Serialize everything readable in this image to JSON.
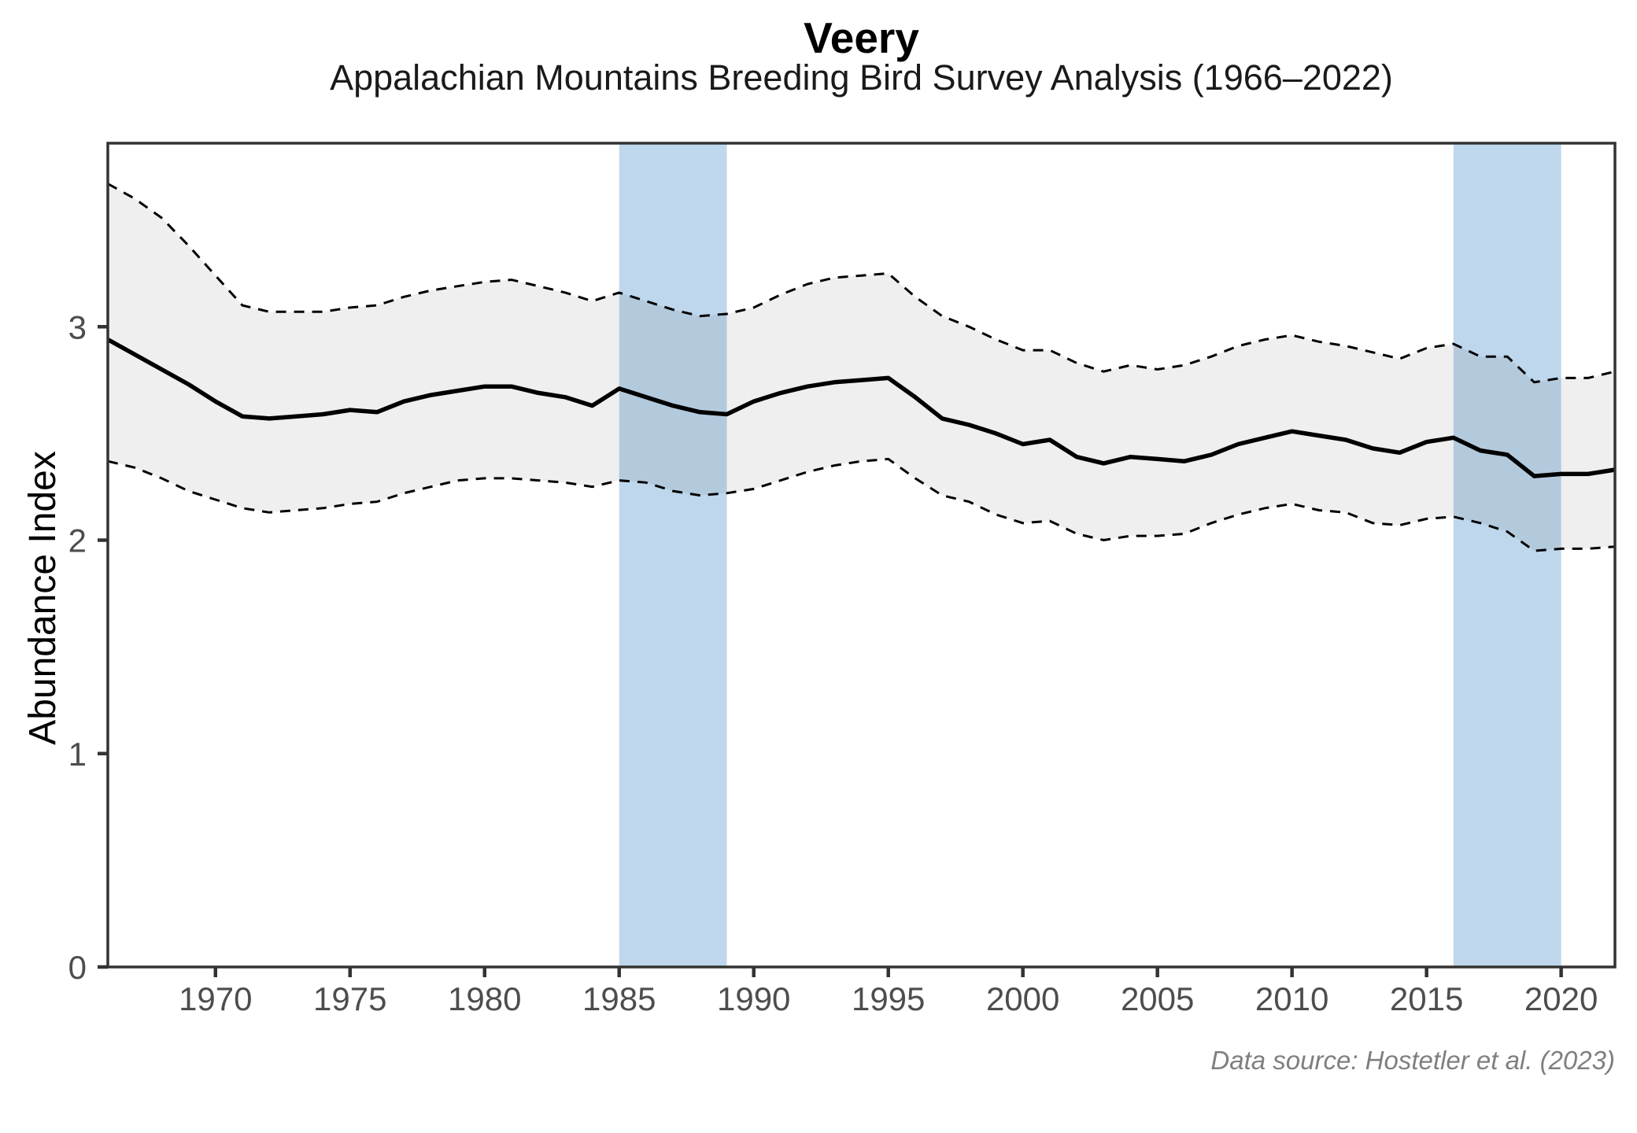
{
  "header": {
    "title": "Veery",
    "subtitle": "Appalachian Mountains Breeding Bird Survey Analysis (1966–2022)"
  },
  "caption": "Data source: Hostetler et al. (2023)",
  "axes": {
    "y_label": "Abundance Index",
    "x_ticks": [
      1970,
      1975,
      1980,
      1985,
      1990,
      1995,
      2000,
      2005,
      2010,
      2015,
      2020
    ],
    "y_ticks": [
      0,
      1,
      2,
      3
    ]
  },
  "colors": {
    "main_line": "#000000",
    "ci_line": "#000000",
    "ribbon_overlay": "rgba(70,70,70,0.085)",
    "highlight_band": "#bed7ec",
    "panel_border": "#333333",
    "tick_mark": "#333333",
    "tick_label": "#4d4d4d",
    "caption_text": "#7f7f7f"
  },
  "chart_data": {
    "type": "line",
    "title": "Veery",
    "subtitle": "Appalachian Mountains Breeding Bird Survey Analysis (1966–2022)",
    "xlabel": "",
    "ylabel": "Abundance Index",
    "x_domain": [
      1966,
      2022
    ],
    "y_domain": [
      0,
      3.86
    ],
    "grid": false,
    "legend": "none",
    "x": [
      1966,
      1967,
      1968,
      1969,
      1970,
      1971,
      1972,
      1973,
      1974,
      1975,
      1976,
      1977,
      1978,
      1979,
      1980,
      1981,
      1982,
      1983,
      1984,
      1985,
      1986,
      1987,
      1988,
      1989,
      1990,
      1991,
      1992,
      1993,
      1994,
      1995,
      1996,
      1997,
      1998,
      1999,
      2000,
      2001,
      2002,
      2003,
      2004,
      2005,
      2006,
      2007,
      2008,
      2009,
      2010,
      2011,
      2012,
      2013,
      2014,
      2015,
      2016,
      2017,
      2018,
      2019,
      2020,
      2021,
      2022
    ],
    "series": [
      {
        "name": "abundance_index",
        "style": "solid",
        "values": [
          2.94,
          2.87,
          2.8,
          2.73,
          2.65,
          2.58,
          2.57,
          2.58,
          2.59,
          2.61,
          2.6,
          2.65,
          2.68,
          2.7,
          2.72,
          2.72,
          2.69,
          2.67,
          2.63,
          2.71,
          2.67,
          2.63,
          2.6,
          2.59,
          2.65,
          2.69,
          2.72,
          2.74,
          2.75,
          2.76,
          2.67,
          2.57,
          2.54,
          2.5,
          2.45,
          2.47,
          2.39,
          2.36,
          2.39,
          2.38,
          2.37,
          2.4,
          2.45,
          2.48,
          2.51,
          2.49,
          2.47,
          2.43,
          2.41,
          2.46,
          2.48,
          2.42,
          2.4,
          2.3,
          2.31,
          2.31,
          2.33
        ]
      },
      {
        "name": "lower_ci",
        "style": "dashed",
        "values": [
          2.37,
          2.34,
          2.29,
          2.23,
          2.19,
          2.15,
          2.13,
          2.14,
          2.15,
          2.17,
          2.18,
          2.22,
          2.25,
          2.28,
          2.29,
          2.29,
          2.28,
          2.27,
          2.25,
          2.28,
          2.27,
          2.23,
          2.21,
          2.22,
          2.24,
          2.28,
          2.32,
          2.35,
          2.37,
          2.38,
          2.29,
          2.21,
          2.18,
          2.12,
          2.08,
          2.09,
          2.03,
          2.0,
          2.02,
          2.02,
          2.03,
          2.08,
          2.12,
          2.15,
          2.17,
          2.14,
          2.13,
          2.08,
          2.07,
          2.1,
          2.11,
          2.08,
          2.04,
          1.95,
          1.96,
          1.96,
          1.97
        ]
      },
      {
        "name": "upper_ci",
        "style": "dashed",
        "values": [
          3.67,
          3.6,
          3.51,
          3.38,
          3.24,
          3.1,
          3.07,
          3.07,
          3.07,
          3.09,
          3.1,
          3.14,
          3.17,
          3.19,
          3.21,
          3.22,
          3.19,
          3.16,
          3.12,
          3.16,
          3.12,
          3.08,
          3.05,
          3.06,
          3.09,
          3.15,
          3.2,
          3.23,
          3.24,
          3.25,
          3.14,
          3.05,
          3.0,
          2.94,
          2.89,
          2.89,
          2.83,
          2.79,
          2.82,
          2.8,
          2.82,
          2.86,
          2.91,
          2.94,
          2.96,
          2.93,
          2.91,
          2.88,
          2.85,
          2.9,
          2.92,
          2.86,
          2.86,
          2.74,
          2.76,
          2.76,
          2.79
        ]
      }
    ],
    "highlight_bands": [
      {
        "start": 1985,
        "end": 1989
      },
      {
        "start": 2016,
        "end": 2020
      }
    ]
  }
}
